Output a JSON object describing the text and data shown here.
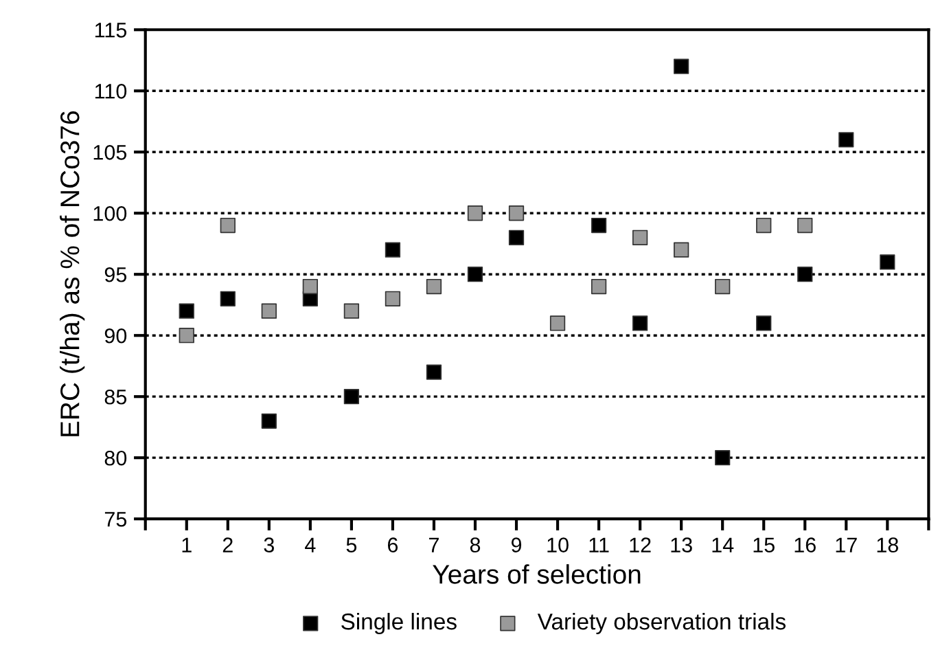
{
  "chart_data": {
    "type": "scatter",
    "xlabel": "Years of selection",
    "ylabel": "ERC (t/ha) as % of NCo376",
    "categories": [
      "1",
      "2",
      "3",
      "4",
      "5",
      "6",
      "7",
      "8",
      "9",
      "10",
      "11",
      "12",
      "13",
      "14",
      "15",
      "16",
      "17",
      "18"
    ],
    "series": [
      {
        "name": "Single lines",
        "color": "#000000",
        "values": [
          92,
          93,
          83,
          93,
          85,
          97,
          87,
          95,
          98,
          null,
          99,
          91,
          112,
          80,
          91,
          95,
          106,
          96
        ]
      },
      {
        "name": "Variety observation trials",
        "color": "#9a9a9a",
        "values": [
          90,
          99,
          92,
          94,
          92,
          93,
          94,
          100,
          100,
          91,
          94,
          98,
          97,
          94,
          99,
          99,
          null,
          null
        ]
      }
    ],
    "ylim": [
      75,
      115
    ],
    "yticks": [
      75,
      80,
      85,
      90,
      95,
      100,
      105,
      110,
      115
    ],
    "grid": "y",
    "legend": "bottom",
    "marker": "square"
  }
}
